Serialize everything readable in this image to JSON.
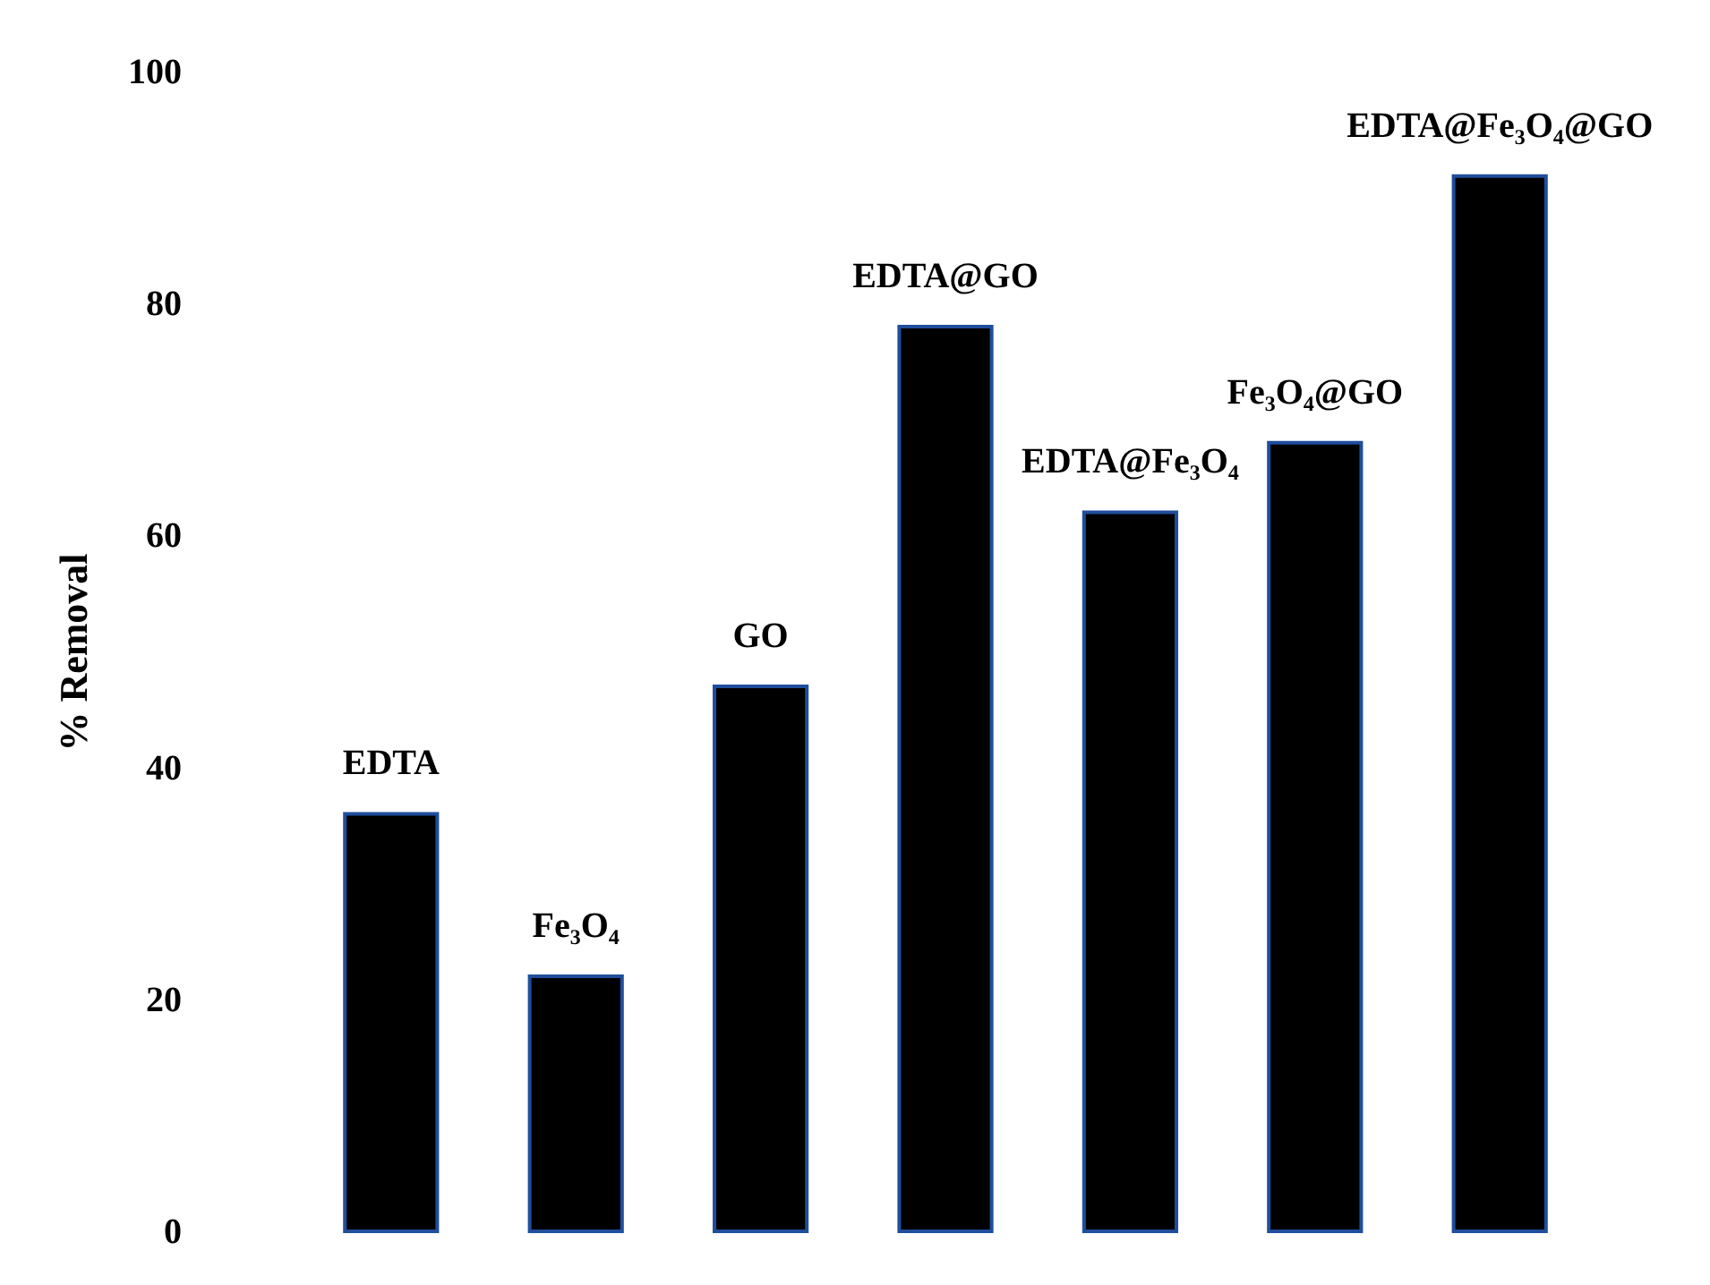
{
  "chart_data": {
    "type": "bar",
    "ylabel": "% Removal",
    "categories": [
      "EDTA",
      "Fe₃O₄",
      "GO",
      "EDTA@GO",
      "EDTA@Fe₃O₄",
      "Fe₃O₄@GO",
      "EDTA@Fe₃O₄@GO"
    ],
    "values": [
      36,
      22,
      47,
      78,
      62,
      68,
      91
    ],
    "color": "#000000",
    "ylim": [
      0,
      100
    ],
    "yticks": [
      0,
      20,
      40,
      60,
      80,
      100
    ],
    "grid": false
  }
}
